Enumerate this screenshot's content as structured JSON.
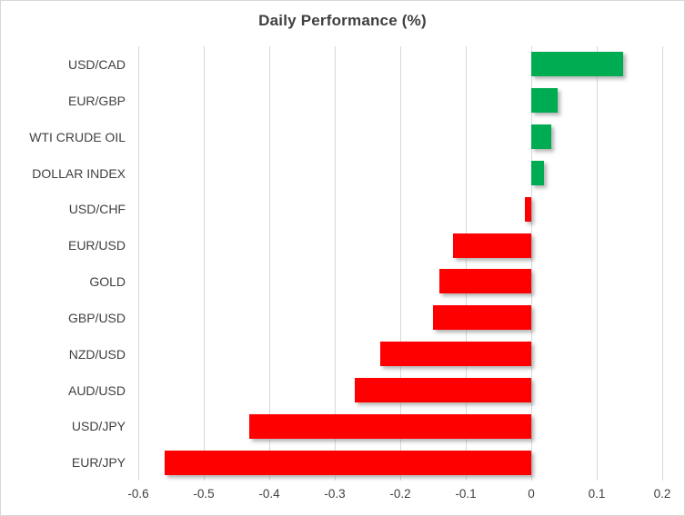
{
  "chart": {
    "title": "Daily Performance (%)"
  },
  "chart_data": {
    "type": "bar",
    "orientation": "horizontal",
    "title": "Daily Performance (%)",
    "categories": [
      "USD/CAD",
      "EUR/GBP",
      "WTI CRUDE OIL",
      "DOLLAR INDEX",
      "USD/CHF",
      "EUR/USD",
      "GOLD",
      "GBP/USD",
      "NZD/USD",
      "AUD/USD",
      "USD/JPY",
      "EUR/JPY"
    ],
    "values": [
      0.14,
      0.04,
      0.03,
      0.02,
      -0.01,
      -0.12,
      -0.14,
      -0.15,
      -0.23,
      -0.27,
      -0.43,
      -0.56
    ],
    "xlabel": "",
    "ylabel": "",
    "xlim": [
      -0.6,
      0.2
    ],
    "x_tick_labels": [
      "-0.6",
      "-0.5",
      "-0.4",
      "-0.3",
      "-0.2",
      "-0.1",
      "0",
      "0.1",
      "0.2"
    ],
    "x_tick_values": [
      -0.6,
      -0.5,
      -0.4,
      -0.3,
      -0.2,
      -0.1,
      0,
      0.1,
      0.2
    ],
    "grid": "vertical-only",
    "legend": "none",
    "colors": {
      "positive_bar": "#00AC51",
      "negative_bar": "#FE0000",
      "gridline": "#D9D9D9",
      "text": "#404040",
      "title_text": "#3F3F3F",
      "border": "#D7D7D7"
    }
  }
}
